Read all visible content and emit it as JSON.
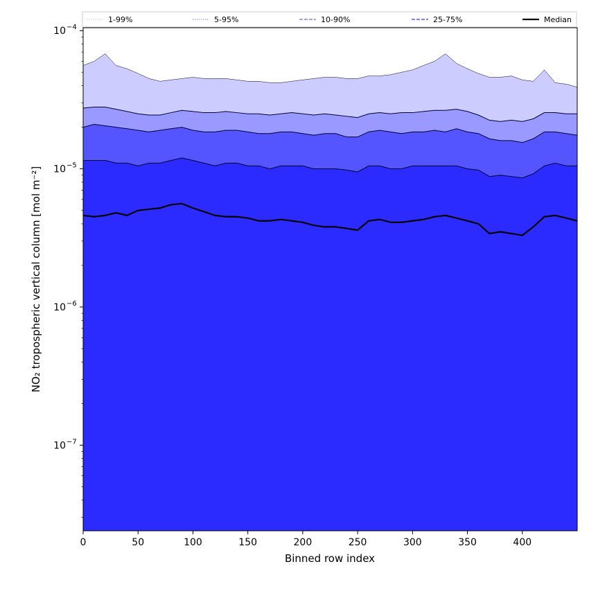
{
  "chart_data": {
    "type": "area",
    "xlabel": "Binned row index",
    "ylabel": "NO₂ tropospheric vertical column [mol m⁻²]",
    "xlim": [
      0,
      450
    ],
    "ylim": [
      2.4e-08,
      0.000105
    ],
    "yscale": "log",
    "grid": false,
    "legend_position": "top",
    "x_ticks": [
      0,
      50,
      100,
      150,
      200,
      250,
      300,
      350,
      400
    ],
    "y_ticks": [
      {
        "value": 1e-07,
        "base": "10",
        "exp": "−7"
      },
      {
        "value": 1e-06,
        "base": "10",
        "exp": "−6"
      },
      {
        "value": 1e-05,
        "base": "10",
        "exp": "−5"
      },
      {
        "value": 0.0001,
        "base": "10",
        "exp": "−4"
      }
    ],
    "legend": [
      {
        "label": "1-99%",
        "color": "#ccccff",
        "style": "dotted"
      },
      {
        "label": "5-95%",
        "color": "#9999ff",
        "style": "dotted"
      },
      {
        "label": "10-90%",
        "color": "#6666ff",
        "style": "dashed"
      },
      {
        "label": "25-75%",
        "color": "#3333ff",
        "style": "dashed"
      },
      {
        "label": "Median",
        "color": "#000000",
        "style": "solid"
      }
    ],
    "series_x": [
      0,
      10,
      20,
      30,
      40,
      50,
      60,
      70,
      80,
      90,
      100,
      110,
      120,
      130,
      140,
      150,
      160,
      170,
      180,
      190,
      200,
      210,
      220,
      230,
      240,
      250,
      260,
      270,
      280,
      290,
      300,
      310,
      320,
      330,
      340,
      350,
      360,
      370,
      380,
      390,
      400,
      410,
      420,
      430,
      440,
      450
    ],
    "bands": [
      {
        "name": "1-99%",
        "color": "#ccccff",
        "upper": [
          5.6e-05,
          6e-05,
          6.8e-05,
          5.6e-05,
          5.3e-05,
          4.9e-05,
          4.5e-05,
          4.3e-05,
          4.4e-05,
          4.5e-05,
          4.6e-05,
          4.5e-05,
          4.5e-05,
          4.5e-05,
          4.4e-05,
          4.3e-05,
          4.3e-05,
          4.2e-05,
          4.2e-05,
          4.3e-05,
          4.4e-05,
          4.5e-05,
          4.6e-05,
          4.6e-05,
          4.5e-05,
          4.5e-05,
          4.7e-05,
          4.7e-05,
          4.8e-05,
          5e-05,
          5.2e-05,
          5.6e-05,
          6e-05,
          6.8e-05,
          5.8e-05,
          5.3e-05,
          4.9e-05,
          4.6e-05,
          4.6e-05,
          4.7e-05,
          4.4e-05,
          4.3e-05,
          5.2e-05,
          4.2e-05,
          4.1e-05,
          3.9e-05
        ],
        "lower": [
          2.4e-08,
          2.4e-08,
          2.4e-08,
          2.4e-08,
          2.4e-08,
          2.4e-08,
          2.4e-08,
          2.4e-08,
          2.4e-08,
          2.4e-08,
          2.4e-08,
          2.4e-08,
          2.4e-08,
          2.4e-08,
          2.4e-08,
          2.4e-08,
          2.4e-08,
          2.4e-08,
          2.4e-08,
          2.4e-08,
          2.4e-08,
          2.4e-08,
          2.4e-08,
          2.4e-08,
          2.4e-08,
          2.4e-08,
          2.4e-08,
          2.4e-08,
          2.4e-08,
          2.4e-08,
          2.4e-08,
          2.4e-08,
          2.4e-08,
          2.4e-08,
          2.4e-08,
          2.4e-08,
          2.4e-08,
          2.4e-08,
          2.4e-08,
          2.4e-08,
          2.4e-08,
          2.4e-08,
          2.4e-08,
          2.4e-08,
          2.4e-08,
          2.4e-08
        ]
      },
      {
        "name": "5-95%",
        "color": "#9999ff",
        "upper": [
          2.75e-05,
          2.8e-05,
          2.8e-05,
          2.7e-05,
          2.6e-05,
          2.5e-05,
          2.45e-05,
          2.45e-05,
          2.55e-05,
          2.65e-05,
          2.6e-05,
          2.55e-05,
          2.55e-05,
          2.6e-05,
          2.55e-05,
          2.5e-05,
          2.5e-05,
          2.45e-05,
          2.5e-05,
          2.55e-05,
          2.5e-05,
          2.45e-05,
          2.5e-05,
          2.45e-05,
          2.4e-05,
          2.35e-05,
          2.5e-05,
          2.55e-05,
          2.5e-05,
          2.55e-05,
          2.55e-05,
          2.6e-05,
          2.65e-05,
          2.65e-05,
          2.7e-05,
          2.6e-05,
          2.45e-05,
          2.25e-05,
          2.2e-05,
          2.25e-05,
          2.2e-05,
          2.3e-05,
          2.55e-05,
          2.55e-05,
          2.5e-05,
          2.5e-05
        ],
        "lower": [
          2.4e-08,
          2.4e-08,
          2.4e-08,
          2.4e-08,
          2.4e-08,
          2.4e-08,
          2.4e-08,
          2.4e-08,
          2.4e-08,
          2.4e-08,
          2.4e-08,
          2.4e-08,
          2.4e-08,
          2.4e-08,
          2.4e-08,
          2.4e-08,
          2.4e-08,
          2.4e-08,
          2.4e-08,
          2.4e-08,
          2.4e-08,
          2.4e-08,
          2.4e-08,
          2.4e-08,
          2.4e-08,
          2.4e-08,
          2.4e-08,
          2.4e-08,
          2.4e-08,
          2.4e-08,
          2.4e-08,
          2.4e-08,
          2.4e-08,
          2.4e-08,
          2.4e-08,
          2.4e-08,
          2.4e-08,
          2.4e-08,
          2.4e-08,
          2.4e-08,
          2.4e-08,
          2.4e-08,
          2.4e-08,
          2.4e-08,
          2.4e-08,
          2.4e-08
        ]
      },
      {
        "name": "10-90%",
        "color": "#5555ff",
        "upper": [
          2e-05,
          2.1e-05,
          2.05e-05,
          2e-05,
          1.95e-05,
          1.9e-05,
          1.85e-05,
          1.9e-05,
          1.95e-05,
          2e-05,
          1.9e-05,
          1.85e-05,
          1.85e-05,
          1.9e-05,
          1.9e-05,
          1.85e-05,
          1.8e-05,
          1.8e-05,
          1.85e-05,
          1.85e-05,
          1.8e-05,
          1.75e-05,
          1.8e-05,
          1.8e-05,
          1.7e-05,
          1.7e-05,
          1.85e-05,
          1.9e-05,
          1.85e-05,
          1.8e-05,
          1.85e-05,
          1.85e-05,
          1.9e-05,
          1.85e-05,
          1.95e-05,
          1.85e-05,
          1.8e-05,
          1.65e-05,
          1.6e-05,
          1.6e-05,
          1.55e-05,
          1.65e-05,
          1.85e-05,
          1.85e-05,
          1.8e-05,
          1.75e-05
        ],
        "lower": [
          2.4e-08,
          2.4e-08,
          2.4e-08,
          2.4e-08,
          2.4e-08,
          2.4e-08,
          2.4e-08,
          2.4e-08,
          2.4e-08,
          2.4e-08,
          2.4e-08,
          2.4e-08,
          2.4e-08,
          2.4e-08,
          2.4e-08,
          2.4e-08,
          2.4e-08,
          2.4e-08,
          2.4e-08,
          2.4e-08,
          2.4e-08,
          2.4e-08,
          2.4e-08,
          2.4e-08,
          2.4e-08,
          2.4e-08,
          2.4e-08,
          2.4e-08,
          2.4e-08,
          2.4e-08,
          2.4e-08,
          2.4e-08,
          2.4e-08,
          2.4e-08,
          2.4e-08,
          2.4e-08,
          2.4e-08,
          2.4e-08,
          2.4e-08,
          2.4e-08,
          2.4e-08,
          2.4e-08,
          2.4e-08,
          2.4e-08,
          2.4e-08,
          2.4e-08
        ]
      },
      {
        "name": "25-75%",
        "color": "#2b2bff",
        "upper": [
          1.15e-05,
          1.15e-05,
          1.15e-05,
          1.1e-05,
          1.1e-05,
          1.05e-05,
          1.1e-05,
          1.1e-05,
          1.15e-05,
          1.2e-05,
          1.15e-05,
          1.1e-05,
          1.05e-05,
          1.1e-05,
          1.1e-05,
          1.05e-05,
          1.05e-05,
          1e-05,
          1.05e-05,
          1.05e-05,
          1.05e-05,
          1e-05,
          1e-05,
          1e-05,
          9.8e-06,
          9.5e-06,
          1.05e-05,
          1.05e-05,
          1e-05,
          1e-05,
          1.05e-05,
          1.05e-05,
          1.05e-05,
          1.05e-05,
          1.05e-05,
          1e-05,
          9.8e-06,
          8.8e-06,
          9e-06,
          8.8e-06,
          8.6e-06,
          9.2e-06,
          1.05e-05,
          1.1e-05,
          1.05e-05,
          1.05e-05
        ],
        "lower": [
          2.4e-08,
          2.4e-08,
          2.4e-08,
          2.4e-08,
          2.4e-08,
          2.4e-08,
          2.4e-08,
          2.4e-08,
          2.4e-08,
          2.4e-08,
          2.4e-08,
          2.4e-08,
          2.4e-08,
          2.4e-08,
          2.4e-08,
          2.4e-08,
          2.4e-08,
          2.4e-08,
          2.4e-08,
          2.4e-08,
          2.4e-08,
          2.4e-08,
          2.4e-08,
          2.4e-08,
          2.4e-08,
          2.4e-08,
          2.4e-08,
          2.4e-08,
          2.4e-08,
          2.4e-08,
          2.4e-08,
          2.4e-08,
          2.4e-08,
          2.4e-08,
          2.4e-08,
          2.4e-08,
          2.4e-08,
          2.4e-08,
          2.4e-08,
          2.4e-08,
          2.4e-08,
          2.4e-08,
          2.4e-08,
          2.4e-08,
          2.4e-08,
          2.4e-08
        ]
      }
    ],
    "median": {
      "name": "Median",
      "color": "#000000",
      "values": [
        4.6e-06,
        4.5e-06,
        4.6e-06,
        4.8e-06,
        4.6e-06,
        5e-06,
        5.1e-06,
        5.2e-06,
        5.5e-06,
        5.6e-06,
        5.2e-06,
        4.9e-06,
        4.6e-06,
        4.5e-06,
        4.5e-06,
        4.4e-06,
        4.2e-06,
        4.2e-06,
        4.3e-06,
        4.2e-06,
        4.1e-06,
        3.9e-06,
        3.8e-06,
        3.8e-06,
        3.7e-06,
        3.6e-06,
        4.2e-06,
        4.3e-06,
        4.1e-06,
        4.1e-06,
        4.2e-06,
        4.3e-06,
        4.5e-06,
        4.6e-06,
        4.4e-06,
        4.2e-06,
        4e-06,
        3.4e-06,
        3.5e-06,
        3.4e-06,
        3.3e-06,
        3.8e-06,
        4.5e-06,
        4.6e-06,
        4.4e-06,
        4.2e-06
      ]
    }
  }
}
